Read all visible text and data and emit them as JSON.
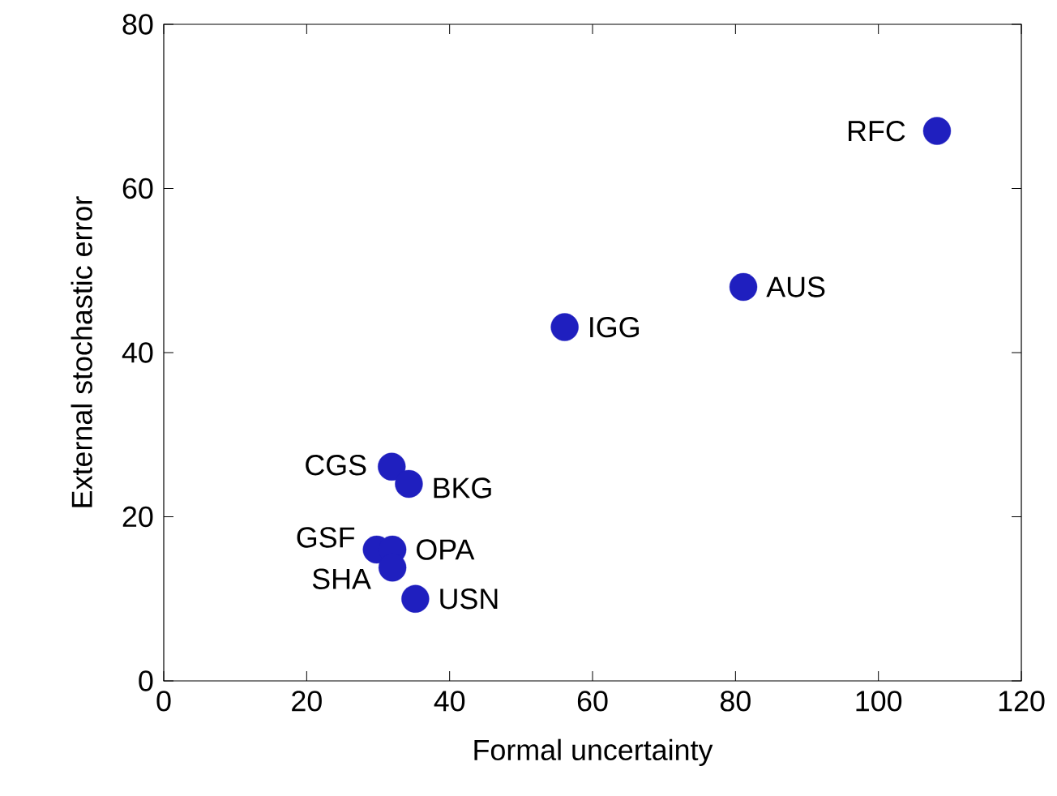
{
  "chart_data": {
    "type": "scatter",
    "xlabel": "Formal uncertainty",
    "ylabel": "External stochastic error",
    "x": [
      108.2,
      81.1,
      56.1,
      31.9,
      34.3,
      29.8,
      32.0,
      32.0,
      35.2
    ],
    "values": [
      67.0,
      48.0,
      43.1,
      26.1,
      24.0,
      16.0,
      16.0,
      13.8,
      10.0
    ],
    "color": "#1f1fbf",
    "marker": "circle",
    "xlim": [
      0,
      120
    ],
    "xticks": [
      0,
      20,
      40,
      60,
      80,
      100,
      120
    ],
    "ylim": [
      0,
      80
    ],
    "yticks": [
      0,
      20,
      40,
      60,
      80
    ],
    "annotations": [
      {
        "text": "RFC",
        "x": 108.2,
        "y": 67.0
      },
      {
        "text": "AUS",
        "x": 81.1,
        "y": 48.0
      },
      {
        "text": "IGG",
        "x": 56.1,
        "y": 43.1
      },
      {
        "text": "CGS",
        "x": 31.9,
        "y": 26.1
      },
      {
        "text": "BKG",
        "x": 34.3,
        "y": 24.0
      },
      {
        "text": "GSF",
        "x": 29.8,
        "y": 16.0
      },
      {
        "text": "OPA",
        "x": 32.0,
        "y": 16.0
      },
      {
        "text": "SHA",
        "x": 32.0,
        "y": 13.8
      },
      {
        "text": "USN",
        "x": 35.2,
        "y": 10.0
      }
    ]
  }
}
